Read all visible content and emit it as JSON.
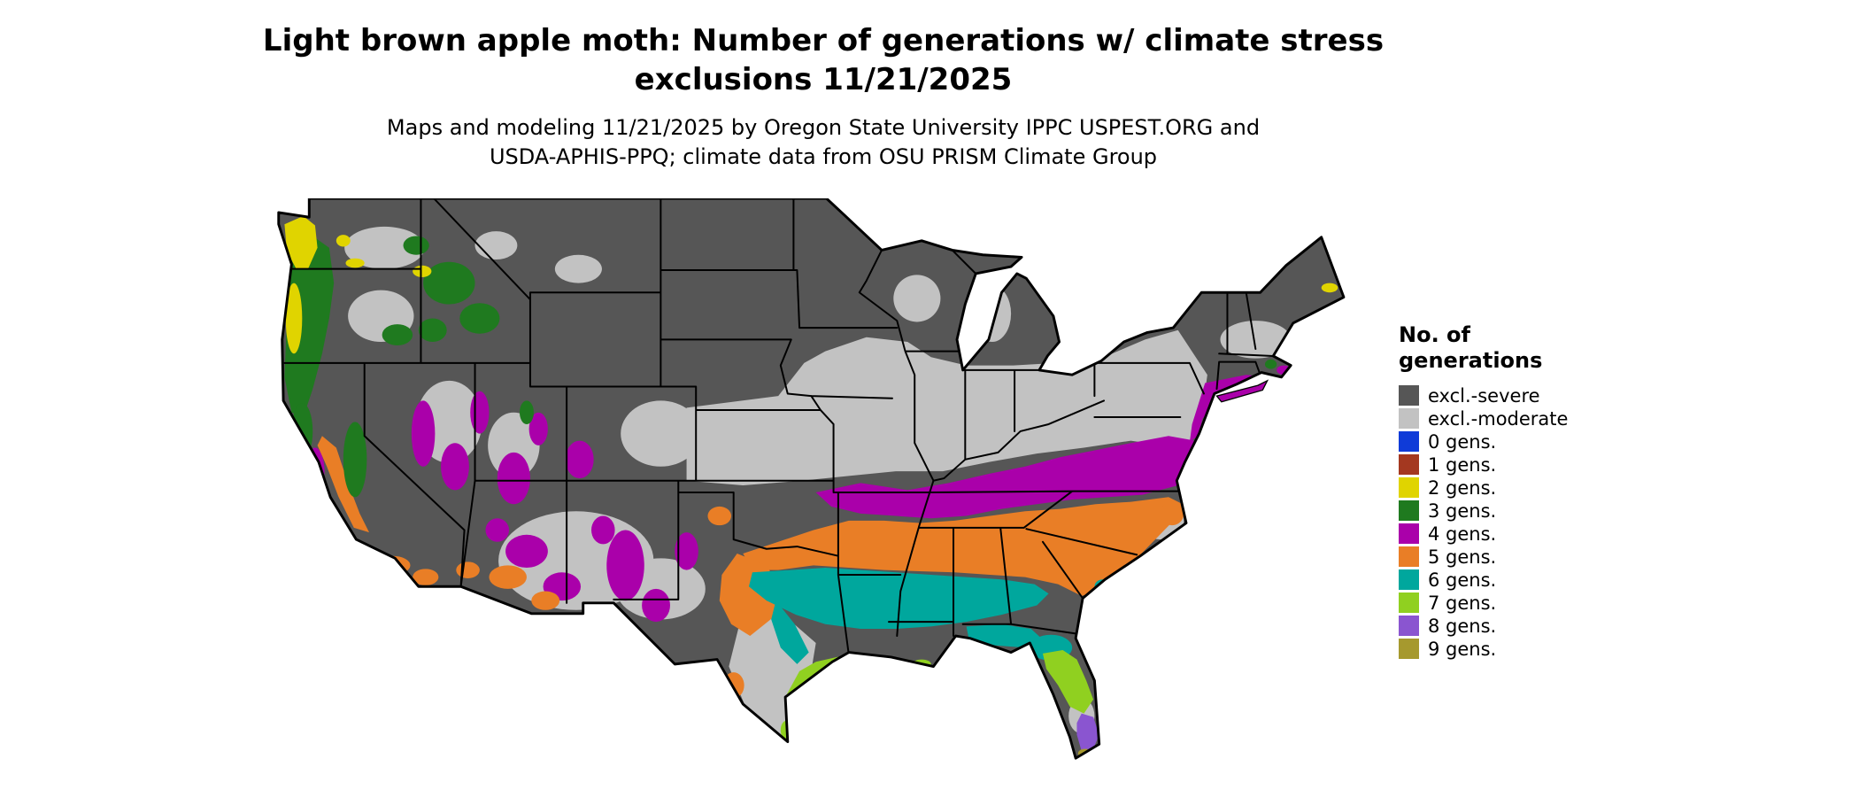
{
  "header": {
    "title_lines": [
      "Light brown apple moth: Number of generations w/ climate stress",
      "exclusions 11/21/2025"
    ],
    "subtitle_lines": [
      "Maps and modeling 11/21/2025 by Oregon State University IPPC USPEST.ORG and",
      "USDA-APHIS-PPQ; climate data from OSU PRISM Climate Group"
    ]
  },
  "legend": {
    "title_lines": [
      "No. of",
      "generations"
    ],
    "items": [
      {
        "key": "severe",
        "label": "excl.-severe",
        "color": "#565656"
      },
      {
        "key": "moderate",
        "label": "excl.-moderate",
        "color": "#c2c2c2"
      },
      {
        "key": "gens0",
        "label": "0 gens.",
        "color": "#0f3bd8"
      },
      {
        "key": "gens1",
        "label": "1 gens.",
        "color": "#a43820"
      },
      {
        "key": "gens2",
        "label": "2 gens.",
        "color": "#e0d400"
      },
      {
        "key": "gens3",
        "label": "3 gens.",
        "color": "#1f7a1f"
      },
      {
        "key": "gens4",
        "label": "4 gens.",
        "color": "#aa00aa"
      },
      {
        "key": "gens5",
        "label": "5 gens.",
        "color": "#e97e26"
      },
      {
        "key": "gens6",
        "label": "6 gens.",
        "color": "#00a79d"
      },
      {
        "key": "gens7",
        "label": "7 gens.",
        "color": "#90d020"
      },
      {
        "key": "gens8",
        "label": "8 gens.",
        "color": "#8a55d0"
      },
      {
        "key": "gens9",
        "label": "9 gens.",
        "color": "#a6992e"
      }
    ]
  }
}
